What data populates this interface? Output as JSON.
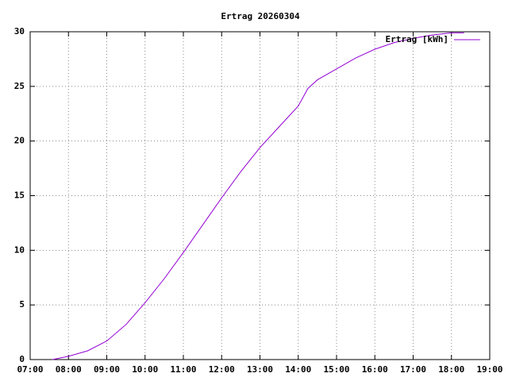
{
  "chart_data": {
    "type": "line",
    "title": "Ertrag 20260304",
    "x": [
      7.58,
      8,
      8.5,
      9,
      9.5,
      10,
      10.5,
      11,
      11.5,
      12,
      12.5,
      13,
      13.5,
      14,
      14.25,
      14.5,
      15,
      15.5,
      16,
      16.5,
      17,
      17.5,
      18,
      18.33
    ],
    "series": [
      {
        "name": "Ertrag [kWh]",
        "color": "#9400d3",
        "values": [
          0,
          0.3,
          0.8,
          1.7,
          3.2,
          5.2,
          7.4,
          9.8,
          12.3,
          14.8,
          17.2,
          19.4,
          21.3,
          23.2,
          24.8,
          25.6,
          26.6,
          27.6,
          28.4,
          29.0,
          29.4,
          29.7,
          29.9,
          29.9
        ]
      }
    ],
    "xlim": [
      7,
      19
    ],
    "xticks": [
      {
        "value": 7,
        "label": "07:00"
      },
      {
        "value": 8,
        "label": "08:00"
      },
      {
        "value": 9,
        "label": "09:00"
      },
      {
        "value": 10,
        "label": "10:00"
      },
      {
        "value": 11,
        "label": "11:00"
      },
      {
        "value": 12,
        "label": "12:00"
      },
      {
        "value": 13,
        "label": "13:00"
      },
      {
        "value": 14,
        "label": "14:00"
      },
      {
        "value": 15,
        "label": "15:00"
      },
      {
        "value": 16,
        "label": "16:00"
      },
      {
        "value": 17,
        "label": "17:00"
      },
      {
        "value": 18,
        "label": "18:00"
      },
      {
        "value": 19,
        "label": "19:00"
      }
    ],
    "ylim": [
      0,
      30
    ],
    "yticks": [
      0,
      5,
      10,
      15,
      20,
      25,
      30
    ],
    "grid": true,
    "legend": "top-right"
  }
}
